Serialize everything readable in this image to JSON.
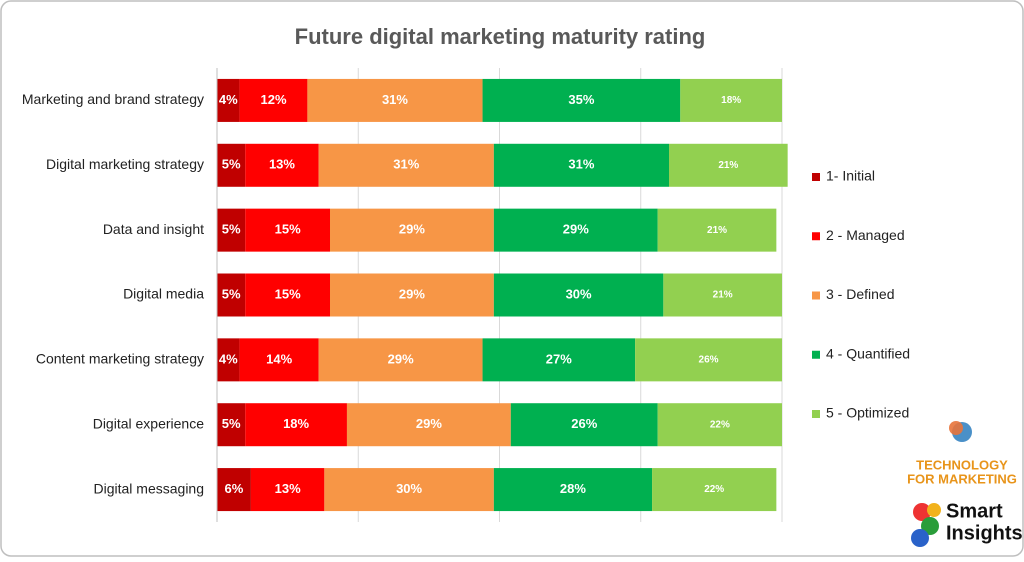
{
  "chart_data": {
    "type": "stacked-bar-horizontal",
    "title": "Future digital marketing maturity rating",
    "categories": [
      "Marketing and brand strategy",
      "Digital marketing strategy",
      "Data and insight",
      "Digital media",
      "Content marketing strategy",
      "Digital experience",
      "Digital messaging"
    ],
    "series": [
      {
        "name": "1- Initial",
        "color": "#c00000",
        "values": [
          4,
          5,
          5,
          5,
          4,
          5,
          6
        ],
        "value_labels": [
          "4%",
          "5%",
          "5%",
          "5%",
          "4%",
          "5%",
          "6%"
        ]
      },
      {
        "name": "2 - Managed",
        "color": "#ff0000",
        "values": [
          12,
          13,
          15,
          15,
          14,
          18,
          13
        ],
        "value_labels": [
          "12%",
          "13%",
          "15%",
          "15%",
          "14%",
          "18%",
          "13%"
        ]
      },
      {
        "name": "3 - Defined",
        "color": "#f79646",
        "values": [
          31,
          31,
          29,
          29,
          29,
          29,
          30
        ],
        "value_labels": [
          "31%",
          "31%",
          "29%",
          "29%",
          "29%",
          "29%",
          "30%"
        ]
      },
      {
        "name": "4 - Quantified",
        "color": "#00b050",
        "values": [
          35,
          31,
          29,
          30,
          27,
          26,
          28
        ],
        "value_labels": [
          "35%",
          "31%",
          "29%",
          "30%",
          "27%",
          "26%",
          "28%"
        ]
      },
      {
        "name": "5 - Optimized",
        "color": "#92d050",
        "values": [
          18,
          21,
          21,
          21,
          26,
          22,
          22
        ],
        "value_labels": [
          "18%",
          "21%",
          "21%",
          "21%",
          "26%",
          "22%",
          "22%"
        ]
      }
    ],
    "xlim": [
      0,
      100
    ],
    "xticks": [
      0,
      25,
      50,
      75,
      100
    ],
    "grid": true,
    "legend": "right"
  },
  "branding": {
    "event": [
      "TECHNOLOGY",
      "FOR MARKETING"
    ],
    "company": [
      "Smart",
      "Insights"
    ]
  }
}
